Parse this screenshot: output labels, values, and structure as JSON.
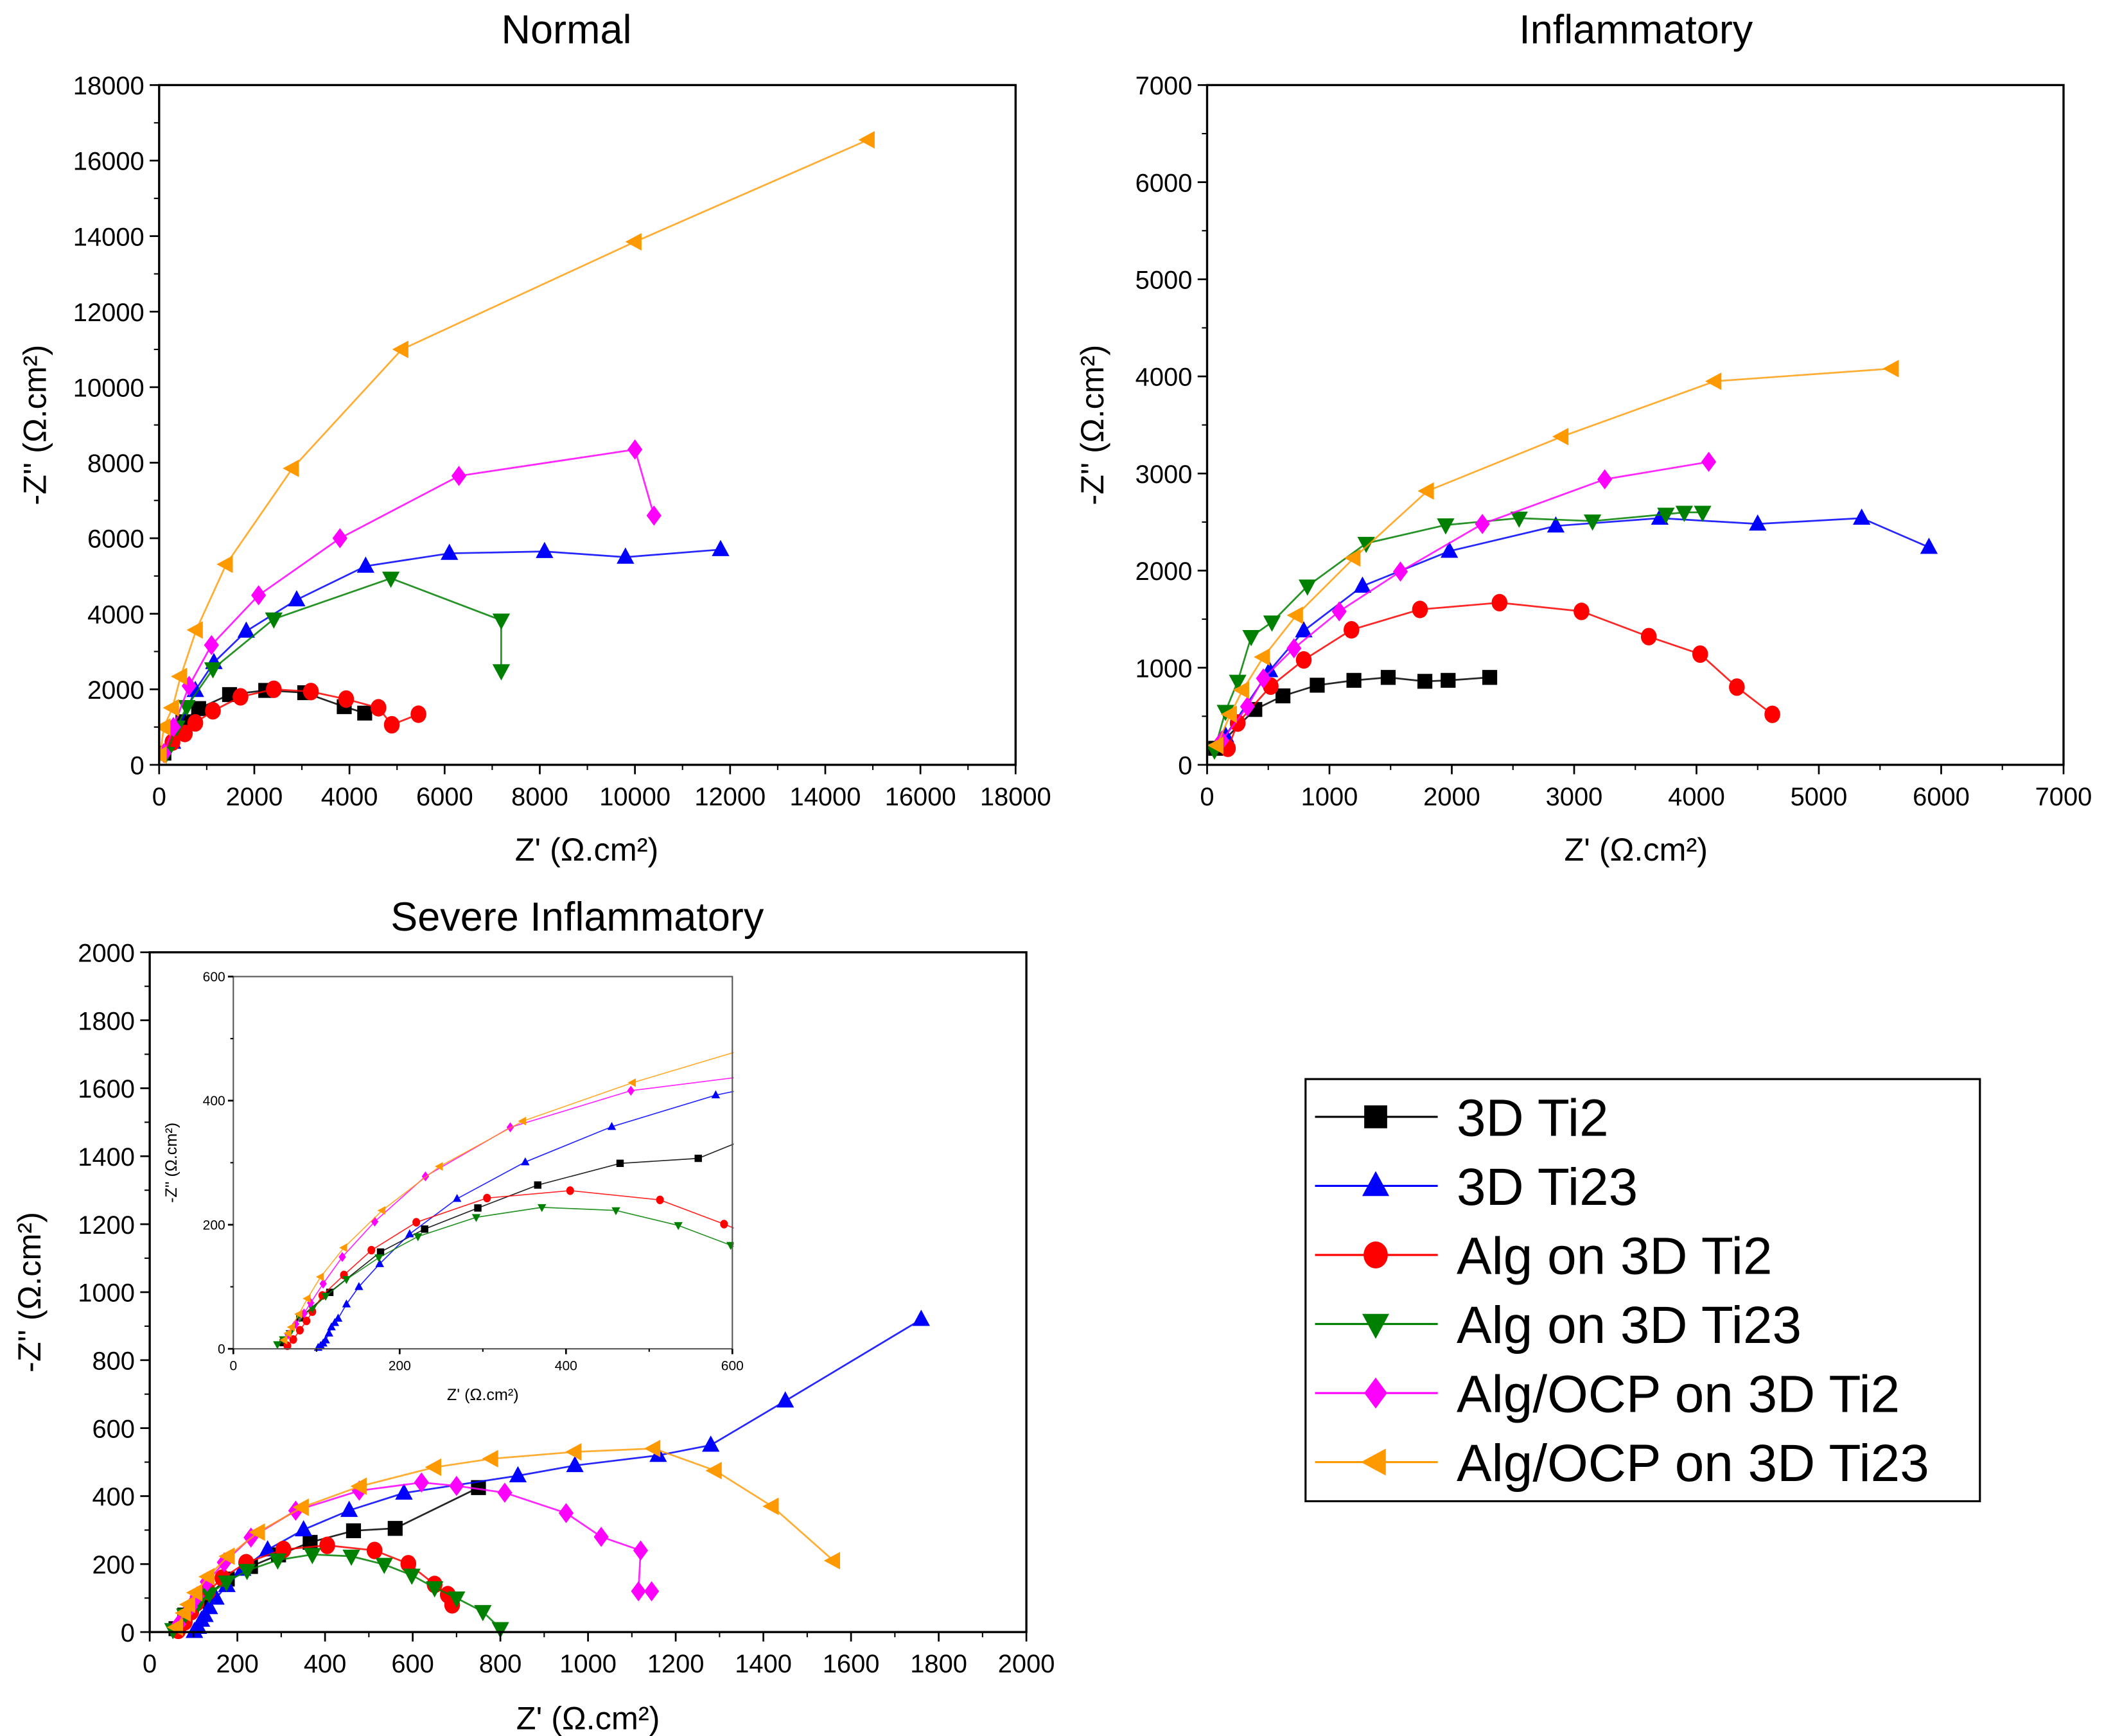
{
  "series_styles": [
    {
      "name": "3D Ti2",
      "color": "#000000",
      "marker": "square"
    },
    {
      "name": "3D Ti23",
      "color": "#0000ff",
      "marker": "triangle-up"
    },
    {
      "name": "Alg on 3D Ti2",
      "color": "#ff0000",
      "marker": "circle"
    },
    {
      "name": "Alg on 3D Ti23",
      "color": "#008000",
      "marker": "triangle-down"
    },
    {
      "name": "Alg/OCP on 3D Ti2",
      "color": "#ff00ff",
      "marker": "diamond"
    },
    {
      "name": "Alg/OCP on 3D Ti23",
      "color": "#ff9900",
      "marker": "triangle-left"
    }
  ],
  "legend": {
    "placement": "bottom-right",
    "entries": [
      "3D Ti2",
      "3D Ti23",
      "Alg on 3D Ti2",
      "Alg on 3D Ti23",
      "Alg/OCP on 3D Ti2",
      "Alg/OCP on 3D Ti23"
    ]
  },
  "chart_data": [
    {
      "type": "scatter",
      "title": "Normal",
      "xlabel": "Z' (Ω.cm²)",
      "ylabel": "-Z'' (Ω.cm²)",
      "xlim": [
        0,
        18000
      ],
      "ylim": [
        0,
        18000
      ],
      "xticks": [
        0,
        2000,
        4000,
        6000,
        8000,
        10000,
        12000,
        14000,
        16000,
        18000
      ],
      "yticks": [
        0,
        2000,
        4000,
        6000,
        8000,
        10000,
        12000,
        14000,
        16000,
        18000
      ],
      "grid": false,
      "series": [
        {
          "name": "3D Ti2",
          "x": [
            100,
            500,
            830,
            1480,
            2240,
            3060,
            3890,
            4320
          ],
          "y": [
            310,
            1140,
            1490,
            1860,
            1970,
            1910,
            1540,
            1370
          ]
        },
        {
          "name": "3D Ti23",
          "x": [
            280,
            760,
            1150,
            1830,
            2890,
            4340,
            6100,
            8100,
            9800,
            11800
          ],
          "y": [
            600,
            1970,
            2710,
            3540,
            4370,
            5260,
            5600,
            5650,
            5500,
            5700
          ]
        },
        {
          "name": "Alg on 3D Ti2",
          "x": [
            280,
            540,
            760,
            1130,
            1710,
            2410,
            3190,
            3930,
            4610,
            4890,
            5450
          ],
          "y": [
            600,
            830,
            1110,
            1430,
            1800,
            2000,
            1940,
            1740,
            1510,
            1060,
            1340
          ]
        },
        {
          "name": "Alg on 3D Ti23",
          "x": [
            150,
            370,
            580,
            1130,
            2410,
            4870,
            7190,
            7190
          ],
          "y": [
            300,
            1000,
            1540,
            2540,
            3860,
            4940,
            3830,
            2490
          ]
        },
        {
          "name": "Alg/OCP on 3D Ti2",
          "x": [
            100,
            300,
            630,
            1100,
            2090,
            3800,
            6300,
            10000,
            10400
          ],
          "y": [
            310,
            1000,
            2090,
            3170,
            4490,
            6000,
            7650,
            8350,
            6600
          ]
        },
        {
          "name": "Alg/OCP on 3D Ti23",
          "x": [
            20,
            100,
            280,
            450,
            780,
            1410,
            2800,
            5100,
            10000,
            14900
          ],
          "y": [
            260,
            1000,
            1510,
            2340,
            3570,
            5310,
            7850,
            11000,
            13850,
            16550
          ]
        }
      ]
    },
    {
      "type": "scatter",
      "title": "Inflammatory",
      "xlabel": "Z' (Ω.cm²)",
      "ylabel": "-Z'' (Ω.cm²)",
      "xlim": [
        0,
        7000
      ],
      "ylim": [
        0,
        7000
      ],
      "xticks": [
        0,
        1000,
        2000,
        3000,
        4000,
        5000,
        6000,
        7000
      ],
      "yticks": [
        0,
        1000,
        2000,
        3000,
        4000,
        5000,
        6000,
        7000
      ],
      "grid": false,
      "series": [
        {
          "name": "3D Ti2",
          "x": [
            70,
            390,
            620,
            900,
            1200,
            1480,
            1780,
            1970,
            2310
          ],
          "y": [
            170,
            570,
            710,
            820,
            870,
            900,
            860,
            870,
            900
          ]
        },
        {
          "name": "3D Ti23",
          "x": [
            150,
            510,
            790,
            1270,
            1980,
            2850,
            3700,
            4500,
            5350,
            5900
          ],
          "y": [
            300,
            970,
            1380,
            1840,
            2200,
            2460,
            2540,
            2480,
            2540,
            2240
          ]
        },
        {
          "name": "Alg on 3D Ti2",
          "x": [
            170,
            250,
            520,
            790,
            1180,
            1740,
            2390,
            3060,
            3610,
            4030,
            4330,
            4620
          ],
          "y": [
            170,
            430,
            810,
            1080,
            1390,
            1600,
            1670,
            1580,
            1320,
            1140,
            800,
            520
          ]
        },
        {
          "name": "Alg on 3D Ti23",
          "x": [
            60,
            150,
            250,
            360,
            530,
            820,
            1300,
            1950,
            2550,
            3150,
            3750,
            3900,
            4050
          ],
          "y": [
            150,
            550,
            860,
            1320,
            1470,
            1840,
            2280,
            2470,
            2540,
            2510,
            2580,
            2600,
            2600
          ]
        },
        {
          "name": "Alg/OCP on 3D Ti2",
          "x": [
            120,
            330,
            460,
            710,
            1080,
            1580,
            2250,
            3250,
            4100
          ],
          "y": [
            250,
            600,
            890,
            1200,
            1580,
            1990,
            2480,
            2940,
            3120
          ]
        },
        {
          "name": "Alg/OCP on 3D Ti23",
          "x": [
            80,
            190,
            290,
            460,
            730,
            1200,
            1800,
            2900,
            4150,
            5600
          ],
          "y": [
            200,
            520,
            770,
            1110,
            1540,
            2130,
            2820,
            3380,
            3950,
            4080
          ]
        }
      ]
    },
    {
      "type": "scatter",
      "title": "Severe Inflammatory",
      "xlabel": "Z' (Ω.cm²)",
      "ylabel": "-Z'' (Ω.cm²)",
      "xlim": [
        0,
        2000
      ],
      "ylim": [
        0,
        2000
      ],
      "xticks": [
        0,
        200,
        400,
        600,
        800,
        1000,
        1200,
        1400,
        1600,
        1800,
        2000
      ],
      "yticks": [
        0,
        200,
        400,
        600,
        800,
        1000,
        1200,
        1400,
        1600,
        1800,
        2000
      ],
      "grid": false,
      "series": [
        {
          "name": "3D Ti2",
          "x": [
            60,
            80,
            116,
            177,
            230,
            294,
            366,
            465,
            560,
            750
          ],
          "y": [
            10,
            50,
            91,
            156,
            193,
            227,
            264,
            298,
            305,
            425
          ]
        },
        {
          "name": "3D Ti23",
          "x": [
            102,
            111,
            118,
            126,
            136,
            151,
            176,
            212,
            269,
            351,
            455,
            580,
            840,
            970,
            1160,
            1280,
            1450,
            1760
          ],
          "y": [
            2,
            14,
            35,
            49,
            72,
            100,
            137,
            185,
            242,
            301,
            358,
            409,
            460,
            490,
            520,
            550,
            680,
            920
          ]
        },
        {
          "name": "Alg on 3D Ti2",
          "x": [
            65,
            80,
            95,
            107,
            133,
            166,
            220,
            305,
            405,
            513,
            590,
            650,
            680,
            690
          ],
          "y": [
            5,
            30,
            60,
            86,
            119,
            159,
            204,
            243,
            255,
            240,
            201,
            140,
            110,
            80
          ]
        },
        {
          "name": "Alg on 3D Ti23",
          "x": [
            53,
            80,
            111,
            136,
            175,
            222,
            292,
            371,
            460,
            535,
            598,
            650,
            700,
            760,
            800
          ],
          "y": [
            7,
            50,
            85,
            112,
            147,
            181,
            212,
            228,
            223,
            199,
            167,
            130,
            100,
            60,
            10
          ]
        },
        {
          "name": "Alg/OCP on 3D Ti2",
          "x": [
            66,
            93,
            108,
            131,
            170,
            231,
            333,
            478,
            620,
            700,
            810,
            950,
            1030,
            1120,
            1115,
            1145
          ],
          "y": [
            23,
            74,
            105,
            148,
            205,
            278,
            357,
            416,
            440,
            430,
            410,
            350,
            280,
            240,
            120,
            120
          ]
        },
        {
          "name": "Alg/OCP on 3D Ti23",
          "x": [
            61,
            79,
            89,
            105,
            133,
            179,
            248,
            348,
            480,
            650,
            780,
            970,
            1150,
            1290,
            1420,
            1560
          ],
          "y": [
            14,
            56,
            81,
            116,
            163,
            223,
            294,
            367,
            429,
            485,
            510,
            530,
            540,
            475,
            370,
            210
          ]
        }
      ]
    },
    {
      "type": "scatter",
      "title": "",
      "inset_of": "Severe Inflammatory",
      "xlabel": "Z' (Ω.cm²)",
      "ylabel": "-Z'' (Ω.cm²)",
      "xlim": [
        0,
        600
      ],
      "ylim": [
        0,
        600
      ],
      "xticks": [
        0,
        200,
        400,
        600
      ],
      "yticks": [
        0,
        200,
        400,
        600
      ],
      "grid": false,
      "series": [
        {
          "name": "3D Ti2",
          "x": [
            60,
            80,
            116,
            177,
            230,
            294,
            366,
            465,
            559,
            620
          ],
          "y": [
            10,
            50,
            91,
            156,
            193,
            227,
            264,
            299,
            307,
            340
          ]
        },
        {
          "name": "3D Ti23",
          "x": [
            102,
            105,
            108,
            111,
            115,
            118,
            122,
            126,
            136,
            151,
            176,
            212,
            269,
            351,
            455,
            580,
            620
          ],
          "y": [
            2,
            5,
            9,
            14,
            25,
            35,
            42,
            49,
            72,
            100,
            137,
            185,
            242,
            301,
            358,
            409,
            420
          ]
        },
        {
          "name": "Alg on 3D Ti2",
          "x": [
            65,
            72,
            80,
            88,
            95,
            107,
            133,
            166,
            220,
            305,
            405,
            513,
            590,
            610
          ],
          "y": [
            5,
            15,
            30,
            45,
            60,
            86,
            119,
            159,
            204,
            243,
            255,
            240,
            201,
            190
          ]
        },
        {
          "name": "Alg on 3D Ti23",
          "x": [
            53,
            60,
            68,
            80,
            95,
            111,
            136,
            175,
            222,
            292,
            371,
            460,
            535,
            598,
            620
          ],
          "y": [
            7,
            15,
            25,
            50,
            65,
            85,
            112,
            147,
            181,
            212,
            228,
            223,
            199,
            167,
            155
          ]
        },
        {
          "name": "Alg/OCP on 3D Ti2",
          "x": [
            66,
            75,
            85,
            93,
            108,
            131,
            170,
            231,
            333,
            478,
            620
          ],
          "y": [
            23,
            40,
            57,
            74,
            105,
            148,
            205,
            278,
            357,
            416,
            440
          ]
        },
        {
          "name": "Alg/OCP on 3D Ti23",
          "x": [
            61,
            66,
            70,
            79,
            89,
            105,
            133,
            179,
            248,
            348,
            480,
            620
          ],
          "y": [
            14,
            25,
            35,
            56,
            81,
            116,
            163,
            223,
            294,
            367,
            429,
            485
          ]
        }
      ]
    }
  ]
}
